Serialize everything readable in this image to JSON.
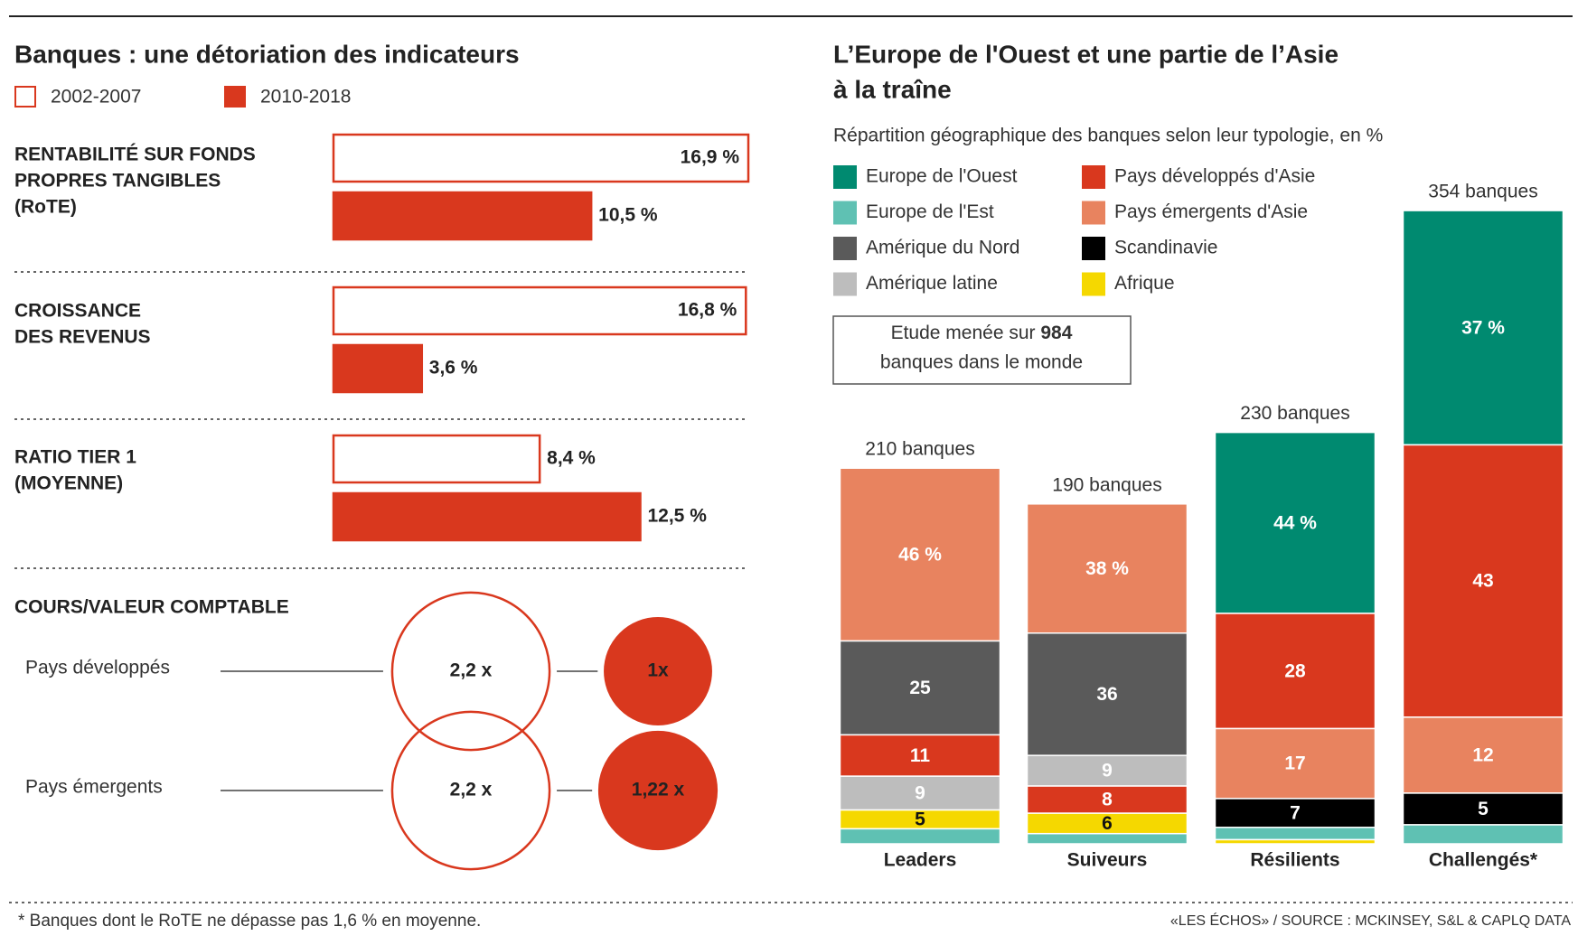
{
  "chart_data": [
    {
      "type": "hbar",
      "title": "Banques : une détoriation des indicateurs",
      "categories": [
        [
          "RENTABILITÉ SUR FONDS",
          "PROPRES TANGIBLES",
          "(RoTE)"
        ],
        [
          "CROISSANCE",
          "DES REVENUS"
        ],
        [
          "RATIO TIER 1",
          "(MOYENNE)"
        ]
      ],
      "series": [
        {
          "name": "2002-2007",
          "color": "#d9381e",
          "filled": false,
          "values": [
            16.9,
            16.8,
            8.4
          ],
          "value_labels": [
            "16,9 %",
            "16,8 %",
            "8,4 %"
          ]
        },
        {
          "name": "2010-2018",
          "color": "#d9381e",
          "filled": true,
          "values": [
            10.5,
            3.6,
            12.5
          ],
          "value_labels": [
            "10,5 %",
            "3,6 %",
            "12,5 %"
          ]
        }
      ]
    },
    {
      "type": "bubble",
      "title": "COURS/VALEUR COMPTABLE",
      "categories": [
        "Pays développés",
        "Pays émergents"
      ],
      "series": [
        {
          "color": "#d9381e",
          "filled": false,
          "values": [
            2.2,
            2.2
          ],
          "value_labels": [
            "2,2 x",
            "2,2 x"
          ]
        },
        {
          "color": "#d9381e",
          "filled": true,
          "values": [
            1,
            1.22
          ],
          "value_labels": [
            "1x",
            "1,22 x"
          ]
        }
      ]
    },
    {
      "type": "stacked-bar",
      "title": [
        "L’Europe de l'Ouest et une partie de l’Asie",
        "à la traîne"
      ],
      "subtitle": "Répartition géographique des banques selon leur typologie, en %",
      "legend": [
        {
          "name": "Europe de l'Ouest",
          "color": "#008a70"
        },
        {
          "name": "Europe de l'Est",
          "color": "#5fc1b3"
        },
        {
          "name": "Amérique du Nord",
          "color": "#5a5a5a"
        },
        {
          "name": "Amérique latine",
          "color": "#bdbdbd"
        },
        {
          "name": "Pays développés d'Asie",
          "color": "#d9381e"
        },
        {
          "name": "Pays émergents d'Asie",
          "color": "#e8835f"
        },
        {
          "name": "Scandinavie",
          "color": "#000000"
        },
        {
          "name": "Afrique",
          "color": "#f5d800"
        }
      ],
      "note": {
        "before": "Etude menée sur",
        "number": 984,
        "after": "banques dans le monde"
      },
      "bars": [
        {
          "category": "Leaders",
          "total": 210,
          "total_label": "210 banques",
          "segments": [
            {
              "series": "Pays émergents d'Asie",
              "value": 46,
              "label": "46 %"
            },
            {
              "series": "Amérique du Nord",
              "value": 25,
              "label": "25"
            },
            {
              "series": "Pays développés d'Asie",
              "value": 11,
              "label": "11"
            },
            {
              "series": "Amérique latine",
              "value": 9,
              "label": "9"
            },
            {
              "series": "Afrique",
              "value": 5,
              "label": "5"
            },
            {
              "series": "Europe de l'Est",
              "value": 4
            }
          ]
        },
        {
          "category": "Suiveurs",
          "total": 190,
          "total_label": "190 banques",
          "segments": [
            {
              "series": "Pays émergents d'Asie",
              "value": 38,
              "label": "38 %"
            },
            {
              "series": "Amérique du Nord",
              "value": 36,
              "label": "36"
            },
            {
              "series": "Amérique latine",
              "value": 9,
              "label": "9"
            },
            {
              "series": "Pays développés d'Asie",
              "value": 8,
              "label": "8"
            },
            {
              "series": "Afrique",
              "value": 6,
              "label": "6"
            },
            {
              "series": "Europe de l'Est",
              "value": 3
            }
          ]
        },
        {
          "category": "Résilients",
          "total": 230,
          "total_label": "230 banques",
          "segments": [
            {
              "series": "Europe de l'Ouest",
              "value": 44,
              "label": "44 %"
            },
            {
              "series": "Pays développés d'Asie",
              "value": 28,
              "label": "28"
            },
            {
              "series": "Pays émergents d'Asie",
              "value": 17,
              "label": "17"
            },
            {
              "series": "Scandinavie",
              "value": 7,
              "label": "7"
            },
            {
              "series": "Europe de l'Est",
              "value": 3
            },
            {
              "series": "Afrique",
              "value": 1
            }
          ]
        },
        {
          "category": "Challengés*",
          "total": 354,
          "total_label": "354 banques",
          "segments": [
            {
              "series": "Europe de l'Ouest",
              "value": 37,
              "label": "37 %"
            },
            {
              "series": "Pays développés d'Asie",
              "value": 43,
              "label": "43"
            },
            {
              "series": "Pays émergents d'Asie",
              "value": 12,
              "label": "12"
            },
            {
              "series": "Scandinavie",
              "value": 5,
              "label": "5"
            },
            {
              "series": "Europe de l'Est",
              "value": 3
            }
          ]
        }
      ]
    }
  ],
  "footnote": "* Banques dont le RoTE ne dépasse pas 1,6 % en moyenne.",
  "source": "«LES ÉCHOS» / SOURCE : MCKINSEY, S&L & CAPLQ DATA"
}
